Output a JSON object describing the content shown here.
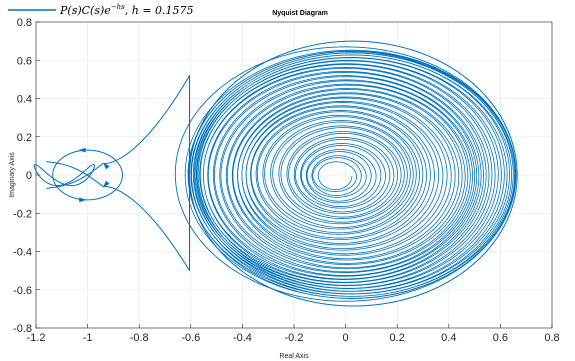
{
  "chart_data": {
    "type": "line",
    "title": "Nyquist Diagram",
    "xlabel": "Real Axis",
    "ylabel": "Imaginary Axis",
    "xlim": [
      -1.2,
      0.8
    ],
    "ylim": [
      -0.8,
      0.8
    ],
    "xticks": [
      -1.2,
      -1,
      -0.8,
      -0.6,
      -0.4,
      -0.2,
      0,
      0.2,
      0.4,
      0.6,
      0.8
    ],
    "yticks": [
      0.8,
      0.6,
      0.4,
      0.2,
      0,
      -0.2,
      -0.4,
      -0.6,
      -0.8
    ],
    "xtick_labels": [
      "-1.2",
      "-1",
      "-0.8",
      "-0.6",
      "-0.4",
      "-0.2",
      "0",
      "0.2",
      "0.4",
      "0.6",
      "0.8"
    ],
    "ytick_labels": [
      "0.8",
      "0.6",
      "0.4",
      "0.2",
      "0",
      "-0.2",
      "-0.4",
      "-0.6",
      "-0.8"
    ],
    "grid": true,
    "legend_position": "top-left",
    "series": [
      {
        "name": "P(s)C(s)e^{-hs},  h = 0.1575",
        "color": "#0072BD",
        "outer_path": [
          [
            0.662,
            0.0
          ],
          [
            0.62,
            0.35
          ],
          [
            0.45,
            0.6
          ],
          [
            0.0,
            0.7
          ],
          [
            -0.45,
            0.6
          ],
          [
            -0.75,
            0.3
          ],
          [
            -0.94,
            0.03
          ]
        ],
        "inner_loop_center": [
          -1.0,
          0.0
        ],
        "inner_loop_radius": 0.13,
        "spiral_center": [
          0.0,
          0.0
        ],
        "spiral_x_range": [
          -0.62,
          0.66
        ],
        "spiral_y_range": [
          -0.64,
          0.66
        ]
      }
    ]
  },
  "legend": {
    "expr": "P(s)C(s)e",
    "sup": "−hs",
    "param": ",   h = 0.1575"
  }
}
